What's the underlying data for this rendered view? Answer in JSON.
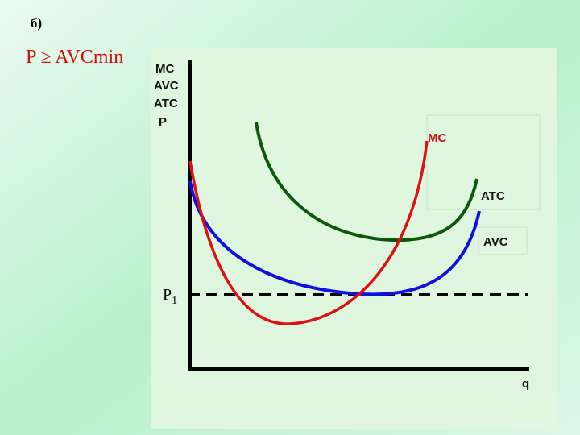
{
  "header": {
    "label": "б)",
    "condition": "P ≥ AVCmin"
  },
  "axes": {
    "y_label": [
      "MC",
      "AVC",
      "ATC",
      "P"
    ],
    "x_label": "q"
  },
  "curves": [
    {
      "label": "MC"
    },
    {
      "label": "ATC"
    },
    {
      "label": "AVC"
    }
  ],
  "price_line": {
    "label": "P",
    "subscript": "1"
  }
}
